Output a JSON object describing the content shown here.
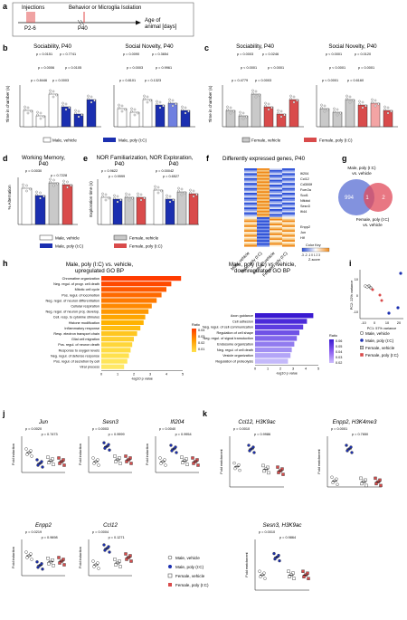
{
  "panel_a": {
    "letter": "a",
    "labels": [
      "Injections",
      "Behavior or Microglia Isolation",
      "P2-6",
      "P40",
      "Age of",
      "animal [days]"
    ]
  },
  "panel_b": {
    "letter": "b",
    "titles": [
      "Sociability, P40",
      "Social Novelty, P40"
    ],
    "ylabel": "Time in chamber (s)",
    "p_left": [
      "p = 0.0151",
      "p = 0.7741",
      "p = 0.0006",
      "p = 0.0105",
      "p = 0.8446",
      "p = 0.0003"
    ],
    "p_right": [
      "p = 0.0090",
      "p = 0.3654",
      "p = 0.0003",
      "p = 0.9961",
      "p = 0.8101",
      "p = 0.1323"
    ],
    "legend": [
      "Male, vehicle",
      "Male, poly (I:C)"
    ]
  },
  "panel_c": {
    "letter": "c",
    "titles": [
      "Sociability, P40",
      "Social Novelty, P40"
    ],
    "ylabel": "Time in chamber (s)",
    "p_left": [
      "p = 0.0003",
      "p = 0.0246",
      "p < 0.0001",
      "p < 0.0001",
      "p = 0.4779",
      "p = 0.0003"
    ],
    "p_right": [
      "p < 0.0001",
      "p = 0.0120",
      "p < 0.0001",
      "p = 0.0001",
      "p < 0.0001",
      "p = 0.6160"
    ],
    "legend": [
      "Female, vehicle",
      "Female, poly (I:C)"
    ]
  },
  "panel_d": {
    "letter": "d",
    "title": [
      "Working Memory,",
      "P40"
    ],
    "ylabel": "% Alternation",
    "p": [
      "p = 0.0030",
      "p = 0.7228"
    ]
  },
  "panel_e": {
    "letter": "e",
    "title": [
      "NOR Familiarization, NOR Exploration,",
      "P40",
      "P40"
    ],
    "ylabel": "Exploration time (s)",
    "p": [
      "p = 0.9622",
      "p = 0.9999",
      "p = 0.00042",
      "p = 0.6527"
    ]
  },
  "legend_de": [
    "Male, vehicle",
    "Female, vehicle",
    "Male, poly (I:C)",
    "Female, poly (I:C)"
  ],
  "panel_f": {
    "letter": "f",
    "title": "Differently expressed genes, P40",
    "genes_up": [
      "Ifi204",
      "Ccl12",
      "Cd300lf",
      "Fcer2a",
      "Sod1",
      "Nfkbid",
      "Sesn3",
      "Ifi44"
    ],
    "genes_down": [
      "Enpp2",
      "Jun",
      "Hlf"
    ],
    "xlabels": [
      "Male, vehicle",
      "Male, poly (I:C)",
      "Female, vehicle",
      "Female, poly (I:C)"
    ],
    "colorkey_title": "Color Key",
    "colorkey_ticks": "-3 -2 -1 0 1 2 3",
    "colorkey_label": "Z-score"
  },
  "panel_g": {
    "letter": "g",
    "label_male": [
      "Male, poly (I:C)",
      "vs. vehicle"
    ],
    "label_female": [
      "Female, poly (I:C)",
      "vs. vehicle"
    ],
    "counts": [
      "994",
      "1",
      "2"
    ]
  },
  "panel_h": {
    "letter": "h",
    "title_up": [
      "Male, poly (I:C) vs. vehicle,",
      "upregulated GO BP"
    ],
    "title_down": [
      "Male, poly (I:C) vs. vehicle,",
      "downregulated GO BP"
    ],
    "up_terms": [
      "Chromatine organization",
      "Neg. regul. of progr. cell death",
      "Mitotic cell cycle",
      "Pos. regul. of locomotion",
      "Neg. regul. of neuron differentiation",
      "Cellular respiration",
      "Neg. regul. of neuron proj. develop.",
      "Cell. resp. to cytokine stimulus",
      "Histone modification",
      "Inflammatory response",
      "Resp. electron transport chain",
      "Glial cell migration",
      "Pos. regul. of neuron death",
      "Response to oxygen levels",
      "Neg. regul. of defense response",
      "Pos. regul. of secretion by cell",
      "Viral process"
    ],
    "up_values": [
      4.9,
      4.3,
      4.0,
      3.7,
      3.4,
      3.1,
      2.9,
      2.7,
      2.6,
      2.4,
      2.2,
      2.0,
      1.9,
      1.8,
      1.7,
      1.6,
      1.4
    ],
    "down_terms": [
      "Axon guidance",
      "Cell adhesion",
      "Neg. regul. of cell communication",
      "Regulation of cell shape",
      "Neg. regul. of signal transduction",
      "Endosome organization",
      "Neg. regul. of cell death",
      "Vesicle organization",
      "Regulation of proteolysis"
    ],
    "down_values": [
      4.6,
      4.1,
      3.8,
      3.5,
      3.3,
      3.1,
      2.9,
      2.8,
      2.6
    ],
    "xlabel": "-log10 p value",
    "ratio_label": "Ratio",
    "ratio_up_ticks": [
      "0.04",
      "0.03",
      "0.02",
      "0.01"
    ],
    "ratio_down_ticks": [
      "0.06",
      "0.05",
      "0.04",
      "0.03",
      "0.02"
    ],
    "xticks": [
      "0",
      "1",
      "2",
      "3",
      "4",
      "5"
    ]
  },
  "panel_i": {
    "letter": "i",
    "xlabel": "PC1: 57% variance",
    "ylabel": "PC2: 22% variance",
    "xticks": [
      "-10",
      "0",
      "10",
      "20"
    ],
    "yticks": [
      "10",
      "0",
      "-10"
    ],
    "legend": [
      "Male, vehicle",
      "Male, poly (I:C)",
      "Female, vehicle",
      "Female, poly (I:C)"
    ]
  },
  "panel_j": {
    "letter": "j",
    "genes": [
      "Jun",
      "Sesn3",
      "Ifi204",
      "Enpp2",
      "Ccl12"
    ],
    "ylabel": "Fold induction",
    "pvals": [
      [
        "p = 0.0020",
        "p = 0.7473"
      ],
      [
        "p = 0.0003",
        "p = 0.9999"
      ],
      [
        "p = 0.0040",
        "p = 0.9954"
      ],
      [
        "p = 0.0219",
        "p = 0.9698"
      ],
      [
        "p = 0.0004",
        "p = 0.1271"
      ]
    ]
  },
  "panel_k": {
    "letter": "k",
    "genes": [
      "Ccl12, H3K9ac",
      "Enpp2, H3K4me3",
      "Sesn3, H3K9ac"
    ],
    "ylabel": "Fold enrichment",
    "pvals": [
      [
        "p = 0.0010",
        "p = 0.9986"
      ],
      [
        "p = 0.0001",
        "p = 0.7650"
      ],
      [
        "p = 0.0010",
        "p = 0.9864"
      ]
    ]
  },
  "legend_jk": [
    "Male, vehicle",
    "Male, poly (I:C)",
    "Female, vehicle",
    "Female, poly (I:C)"
  ],
  "colors": {
    "male_vehicle": "#ffffff",
    "male_polyic": "#1b2fb0",
    "female_vehicle": "#c9c9c9",
    "female_polyic": "#d94b4b"
  }
}
